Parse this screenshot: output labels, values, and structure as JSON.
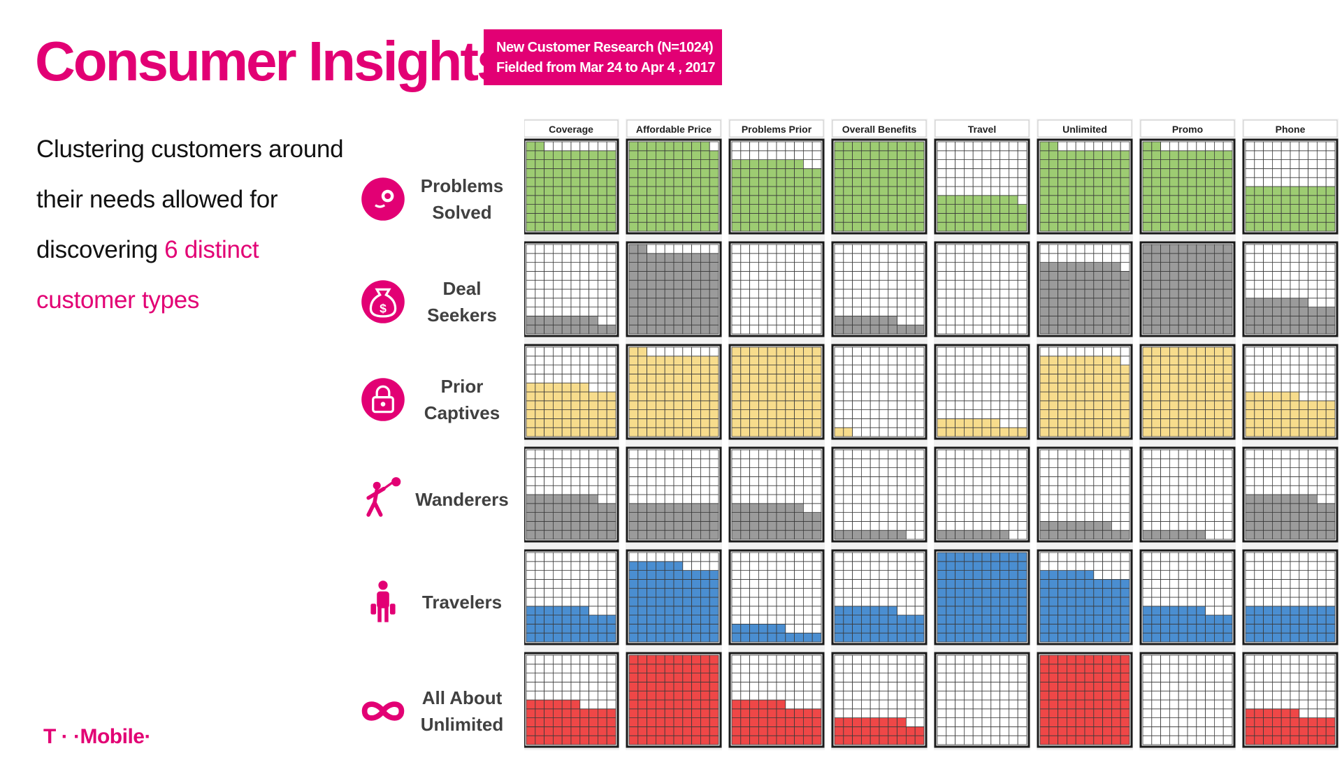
{
  "header": {
    "title": "Consumer Insights",
    "badge_line1": "New Customer Research (N=1024)",
    "badge_line2": "Fielded from Mar 24 to Apr 4 , 2017"
  },
  "intro": {
    "line1": "Clustering customers around",
    "line2": "their needs allowed for",
    "line3_prefix": "discovering ",
    "line3_highlight": "6 distinct",
    "line4": "customer types"
  },
  "segments": [
    {
      "label": "Problems\nSolved",
      "icon": "face-icon"
    },
    {
      "label": "Deal\nSeekers",
      "icon": "money-bag-icon"
    },
    {
      "label": "Prior\nCaptives",
      "icon": "padlock-icon"
    },
    {
      "label": "Wanderers",
      "icon": "wanderer-icon"
    },
    {
      "label": "Travelers",
      "icon": "traveler-icon"
    },
    {
      "label": "All About\nUnlimited",
      "icon": "infinity-icon"
    }
  ],
  "logo": "T · ·Mobile·",
  "colors": {
    "brand": "#e20074",
    "series": [
      "#9dcc72",
      "#9b9b9b",
      "#f7dc8c",
      "#9b9b9b",
      "#4a8ed1",
      "#ef4747"
    ]
  },
  "chart_data": {
    "type": "heatmap",
    "grid": "10x10 waffle",
    "categories": [
      "Coverage",
      "Affordable Price",
      "Problems Prior",
      "Overall Benefits",
      "Travel",
      "Unlimited",
      "Promo",
      "Phone"
    ],
    "series": [
      {
        "name": "Problems Solved",
        "values": [
          92,
          99,
          78,
          100,
          39,
          92,
          92,
          50
        ]
      },
      {
        "name": "Deal Seekers",
        "values": [
          18,
          92,
          0,
          17,
          0,
          79,
          100,
          37
        ]
      },
      {
        "name": "Prior Captives",
        "values": [
          57,
          92,
          100,
          2,
          17,
          89,
          100,
          46
        ]
      },
      {
        "name": "Wanderers",
        "values": [
          48,
          40,
          38,
          8,
          8,
          18,
          7,
          48
        ]
      },
      {
        "name": "Travelers",
        "values": [
          37,
          86,
          16,
          37,
          100,
          76,
          37,
          40
        ]
      },
      {
        "name": "All About Unlimited",
        "values": [
          46,
          100,
          46,
          28,
          0,
          100,
          0,
          36
        ]
      }
    ]
  }
}
